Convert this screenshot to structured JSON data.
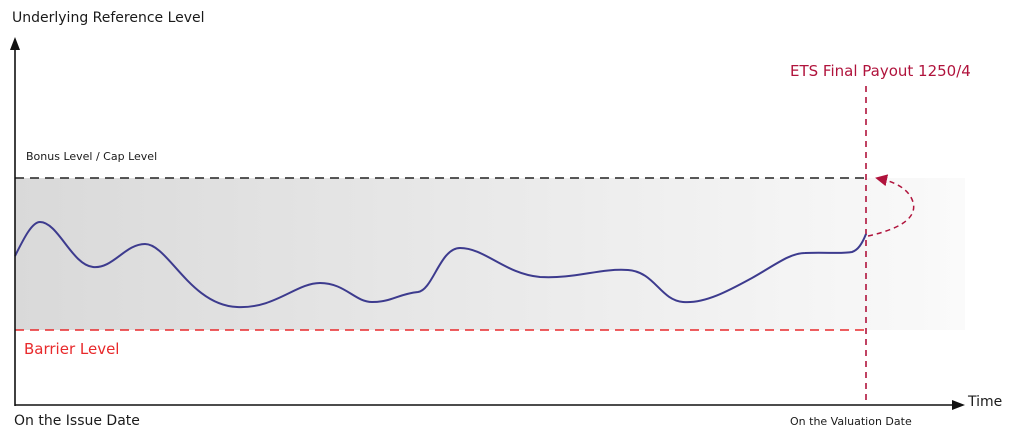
{
  "labels": {
    "y_axis": "Underlying Reference Level",
    "x_axis": "Time",
    "issue_date": "On the Issue Date",
    "valuation_date": "On the Valuation Date",
    "bonus_cap_level": "Bonus Level / Cap Level",
    "barrier_level": "Barrier Level",
    "ets_payout": "ETS Final Payout 1250/4"
  },
  "colors": {
    "axis": "#111111",
    "bonus_cap_line": "#222222",
    "barrier": "#e8292b",
    "ets": "#b0133c",
    "price_path": "#3d3b8e",
    "zone_fill_dark": "#d9d9d9",
    "zone_fill_light": "#ffffff"
  }
}
